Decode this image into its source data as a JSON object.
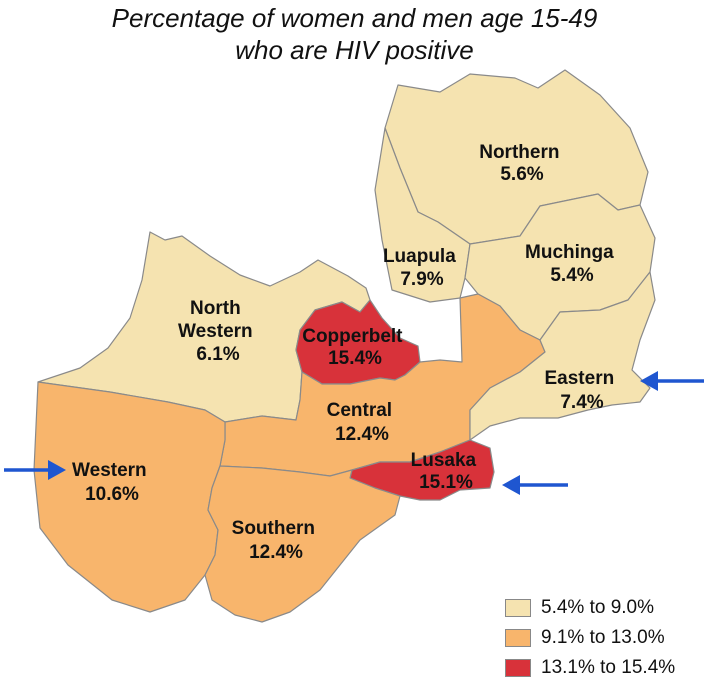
{
  "title": {
    "line1": "Percentage of women and men age 15-49",
    "line2": "who are HIV positive"
  },
  "colors": {
    "low": "#f5e3b0",
    "mid": "#f8b56c",
    "high": "#d8323a",
    "border": "#8a8a8a",
    "arrow": "#1f56d0"
  },
  "regions": [
    {
      "name": "Northern",
      "value": "5.6%",
      "category": "low"
    },
    {
      "name": "Luapula",
      "value": "7.9%",
      "category": "low"
    },
    {
      "name": "Muchinga",
      "value": "5.4%",
      "category": "low"
    },
    {
      "name": "North Western",
      "name_lines": [
        "North",
        "Western"
      ],
      "value": "6.1%",
      "category": "low"
    },
    {
      "name": "Copperbelt",
      "value": "15.4%",
      "category": "high"
    },
    {
      "name": "Central",
      "value": "12.4%",
      "category": "mid"
    },
    {
      "name": "Eastern",
      "value": "7.4%",
      "category": "low"
    },
    {
      "name": "Western",
      "value": "10.6%",
      "category": "mid"
    },
    {
      "name": "Lusaka",
      "value": "15.1%",
      "category": "high"
    },
    {
      "name": "Southern",
      "value": "12.4%",
      "category": "mid"
    }
  ],
  "highlighted_regions": [
    "Eastern",
    "Western",
    "Lusaka"
  ],
  "legend": [
    {
      "label": "5.4% to 9.0%",
      "category": "low"
    },
    {
      "label": "9.1% to 13.0%",
      "category": "mid"
    },
    {
      "label": "13.1% to 15.4%",
      "category": "high"
    }
  ]
}
